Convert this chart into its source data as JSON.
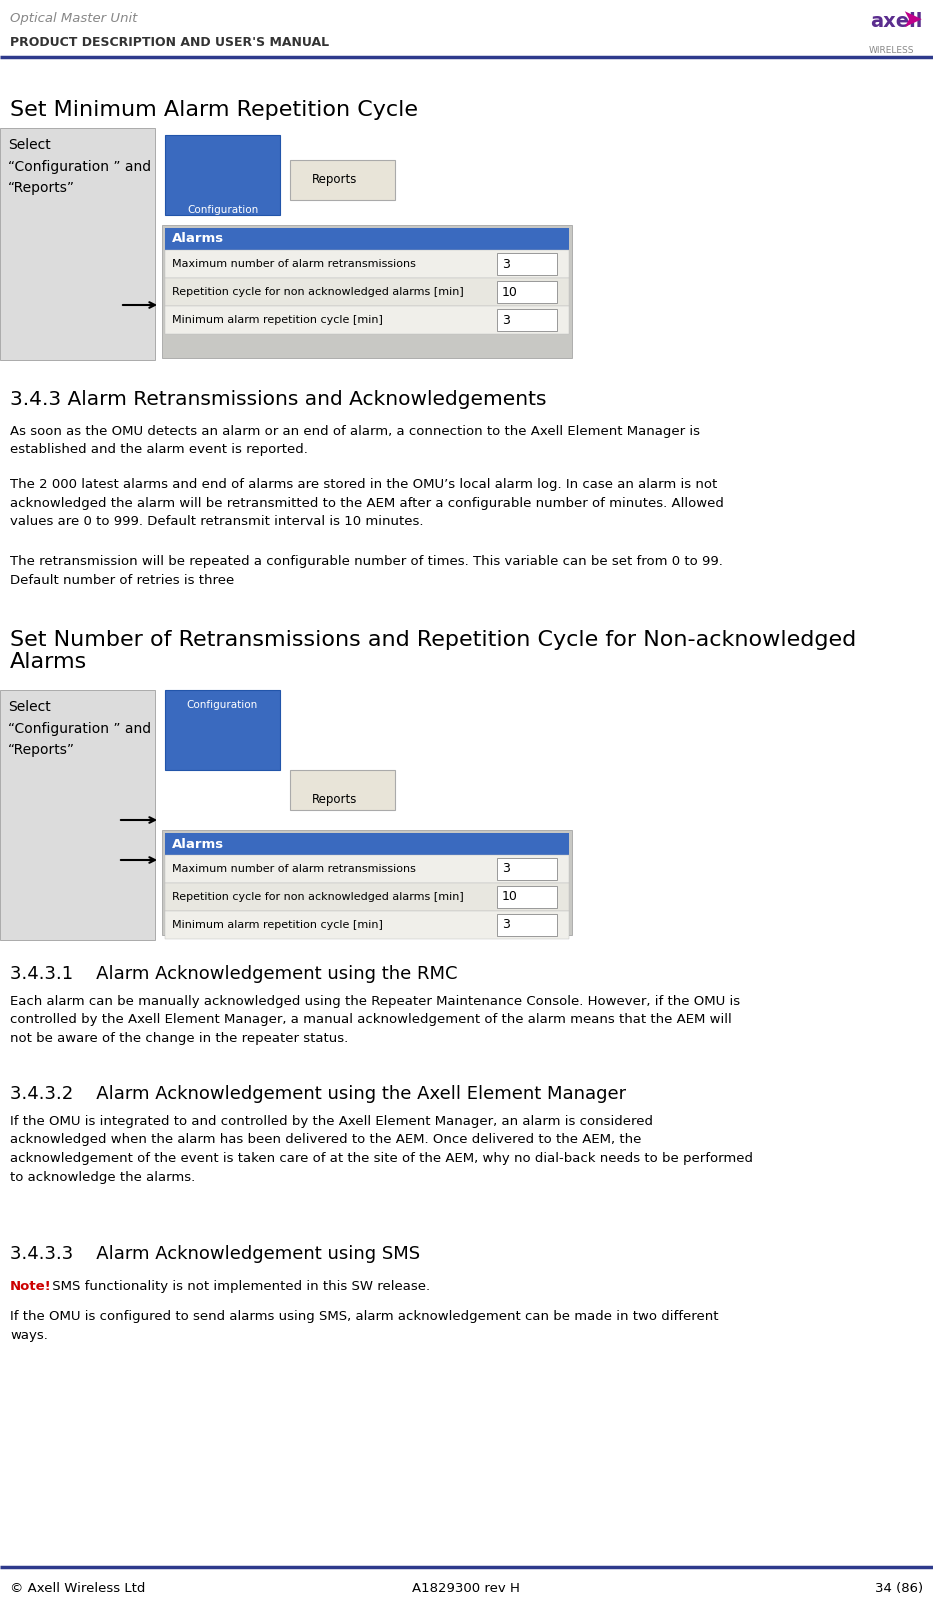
{
  "page_title": "Optical Master Unit",
  "page_subtitle": "PRODUCT DESCRIPTION AND USER'S MANUAL",
  "header_line_color": "#2e3a8c",
  "footer_line_color": "#2e3a8c",
  "footer_left": "© Axell Wireless Ltd",
  "footer_center": "A1829300 rev H",
  "footer_right": "34 (86)",
  "bg_color": "#ffffff",
  "section1_title": "Set Minimum Alarm Repetition Cycle",
  "section1_label": "Select\n“Configuration ” and\n“Reports”",
  "alarm_table_header": "Alarms",
  "alarm_rows": [
    [
      "Maximum number of alarm retransmissions",
      "3"
    ],
    [
      "Repetition cycle for non acknowledged alarms [min]",
      "10"
    ],
    [
      "Minimum alarm repetition cycle [min]",
      "3"
    ]
  ],
  "section343_title": "3.4.3 Alarm Retransmissions and Acknowledgements",
  "section343_para1": "As soon as the OMU detects an alarm or an end of alarm, a connection to the Axell Element Manager is\nestablished and the alarm event is reported.",
  "section343_para2": "The 2 000 latest alarms and end of alarms are stored in the OMU’s local alarm log. In case an alarm is not\nacknowledged the alarm will be retransmitted to the AEM after a configurable number of minutes. Allowed\nvalues are 0 to 999. Default retransmit interval is 10 minutes.",
  "section343_para3": "The retransmission will be repeated a configurable number of times. This variable can be set from 0 to 99.\nDefault number of retries is three",
  "section2_title": "Set Number of Retransmissions and Repetition Cycle for Non-acknowledged\nAlarms",
  "section2_label": "Select\n“Configuration ” and\n“Reports”",
  "section3431_title": "3.4.3.1    Alarm Acknowledgement using the RMC",
  "section3431_para": "Each alarm can be manually acknowledged using the Repeater Maintenance Console. However, if the OMU is\ncontrolled by the Axell Element Manager, a manual acknowledgement of the alarm means that the AEM will\nnot be aware of the change in the repeater status.",
  "section3432_title": "3.4.3.2    Alarm Acknowledgement using the Axell Element Manager",
  "section3432_para": "If the OMU is integrated to and controlled by the Axell Element Manager, an alarm is considered\nacknowledged when the alarm has been delivered to the AEM. Once delivered to the AEM, the\nacknowledgement of the event is taken care of at the site of the AEM, why no dial-back needs to be performed\nto acknowledge the alarms.",
  "section3433_title": "3.4.3.3    Alarm Acknowledgement using SMS",
  "section3433_note": "Note!",
  "section3433_note_rest": " SMS functionality is not implemented in this SW release.",
  "section3433_para": "If the OMU is configured to send alarms using SMS, alarm acknowledgement can be made in two different\nways.",
  "blue_btn_color": "#3a6abf",
  "blue_hdr_color": "#3a6abf",
  "table_outer_bg": "#c8c8c8",
  "table_inner_bg": "#e0dfd8",
  "row_alt1": "#f0efea",
  "row_alt2": "#e8e7e0",
  "left_panel_bg": "#dcdcdc",
  "note_color": "#cc0000",
  "text_color": "#000000",
  "reports_btn_bg": "#e8e4d8"
}
